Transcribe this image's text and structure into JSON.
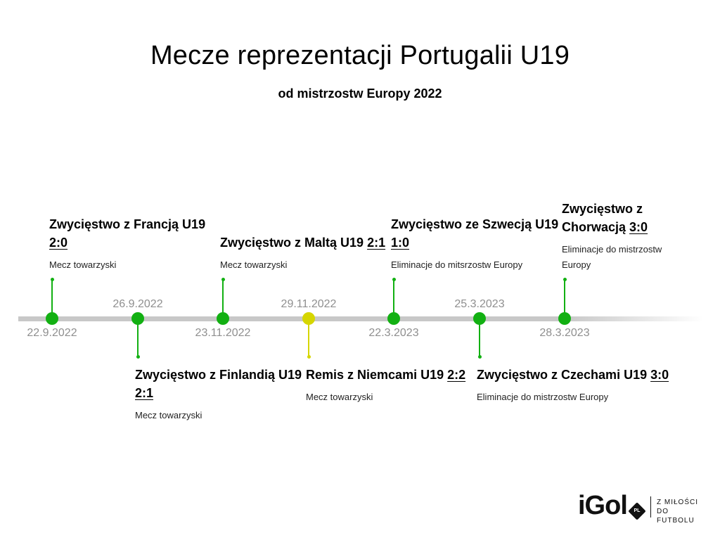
{
  "title": "Mecze reprezentacji Portugalii U19",
  "subtitle": "od mistrzostw Europy 2022",
  "colors": {
    "win": "#12b012",
    "draw": "#d6d600",
    "axis": "#c8c8c8",
    "date": "#8f8f8f"
  },
  "events": [
    {
      "date": "22.9.2022",
      "result": "win",
      "title_prefix": "Zwycięstwo z Francją U19 ",
      "score": "2:0",
      "type": "Mecz towarzyski"
    },
    {
      "date": "26.9.2022",
      "result": "win",
      "title_prefix": "Zwycięstwo z Finlandią U19 ",
      "score": "2:1",
      "type": "Mecz towarzyski"
    },
    {
      "date": "23.11.2022",
      "result": "win",
      "title_prefix": "Zwycięstwo z Maltą U19 ",
      "score": "2:1",
      "type": "Mecz towarzyski"
    },
    {
      "date": "29.11.2022",
      "result": "draw",
      "title_prefix": "Remis z Niemcami U19 ",
      "score": "2:2",
      "type": "Mecz towarzyski"
    },
    {
      "date": "22.3.2023",
      "result": "win",
      "title_prefix": "Zwycięstwo ze Szwecją U19 ",
      "score": "1:0",
      "type": "Eliminacje do mitsrzostw Europy"
    },
    {
      "date": "25.3.2023",
      "result": "win",
      "title_prefix": "Zwycięstwo z Czechami U19 ",
      "score": "3:0",
      "type": "Eliminacje do mistrzostw Europy"
    },
    {
      "date": "28.3.2023",
      "result": "win",
      "title_prefix": "Zwycięstwo z Chorwacją ",
      "score": "3:0",
      "type": "Eliminacje do mistrzostw Europy"
    }
  ],
  "logo": {
    "brand": "iGol",
    "badge": "PL",
    "tagline_line1": "Z MIŁOŚCI",
    "tagline_line2": "DO FUTBOLU"
  }
}
